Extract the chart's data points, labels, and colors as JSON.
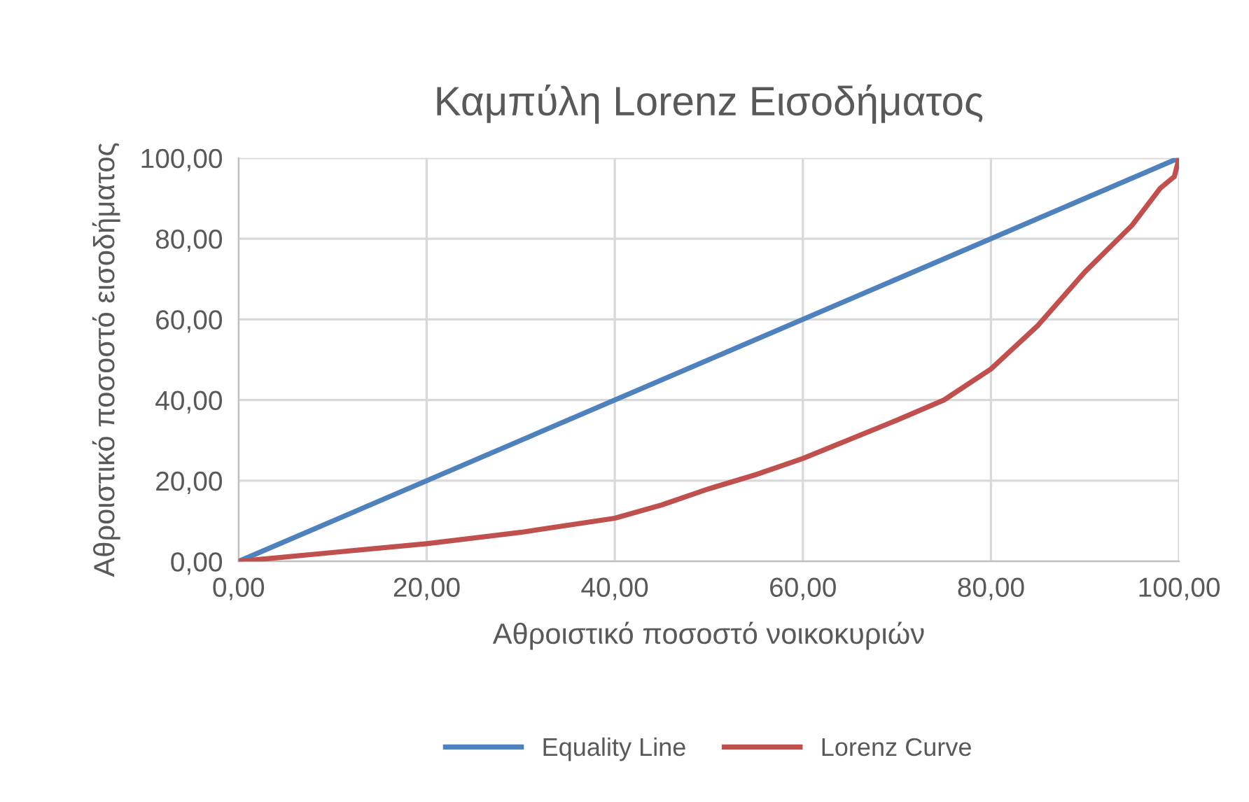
{
  "chart_data": {
    "type": "line",
    "title": "Καμπύλη Lorenz Εισοδήματος",
    "xlabel": "Αθροιστικό ποσοστό νοικοκυριών",
    "ylabel": "Αθροιστικό ποσοστό εισοδήματος",
    "series": [
      {
        "name": "Equality Line",
        "color": "#4f81bd",
        "x": [
          0,
          100
        ],
        "values": [
          0,
          100
        ]
      },
      {
        "name": "Lorenz Curve",
        "color": "#c0504d",
        "x": [
          0,
          10,
          20,
          30,
          40,
          45,
          50,
          55,
          60,
          70,
          75,
          80,
          85,
          90,
          95,
          98,
          99.5,
          100
        ],
        "values": [
          0,
          2.2,
          4.4,
          7.2,
          10.7,
          14,
          18,
          21.5,
          25.5,
          35,
          40,
          47.7,
          58.5,
          71.8,
          83.3,
          92.5,
          95.4,
          100
        ]
      }
    ],
    "xlim": [
      0,
      100
    ],
    "ylim": [
      0,
      100
    ],
    "xticks": [
      {
        "value": 0,
        "label": "0,00"
      },
      {
        "value": 20,
        "label": "20,00"
      },
      {
        "value": 40,
        "label": "40,00"
      },
      {
        "value": 60,
        "label": "60,00"
      },
      {
        "value": 80,
        "label": "80,00"
      },
      {
        "value": 100,
        "label": "100,00"
      }
    ],
    "yticks": [
      {
        "value": 0,
        "label": "0,00"
      },
      {
        "value": 20,
        "label": "20,00"
      },
      {
        "value": 40,
        "label": "40,00"
      },
      {
        "value": 60,
        "label": "60,00"
      },
      {
        "value": 80,
        "label": "80,00"
      },
      {
        "value": 100,
        "label": "100,00"
      }
    ],
    "grid": true,
    "legend": "bottom",
    "marker": "none",
    "line_style": "solid"
  }
}
